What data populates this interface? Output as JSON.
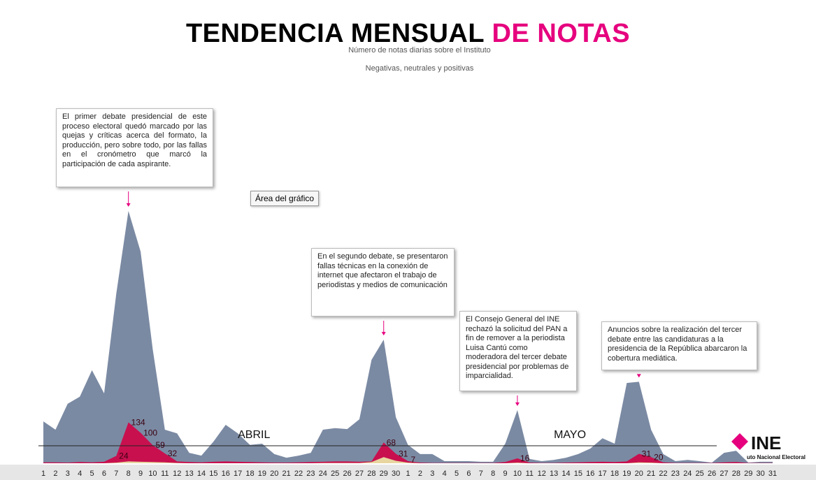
{
  "chart_data": {
    "type": "area",
    "title": "TENDENCIA MENSUAL",
    "title_highlight": "DE NOTAS",
    "subtitle": "Número de notas diarias sobre el Instituto",
    "subtitle2": "Negativas, neutrales y positivas",
    "categories": [
      "1",
      "2",
      "3",
      "4",
      "5",
      "6",
      "7",
      "8",
      "9",
      "10",
      "11",
      "12",
      "13",
      "14",
      "15",
      "16",
      "17",
      "18",
      "19",
      "20",
      "21",
      "22",
      "23",
      "24",
      "25",
      "26",
      "27",
      "28",
      "29",
      "30",
      "1",
      "2",
      "3",
      "4",
      "5",
      "6",
      "7",
      "8",
      "9",
      "10",
      "11",
      "12",
      "13",
      "14",
      "15",
      "16",
      "17",
      "18",
      "19",
      "20",
      "21",
      "22",
      "23",
      "24",
      "25",
      "26",
      "27",
      "28",
      "29",
      "30",
      "31"
    ],
    "months": [
      {
        "label": "ABRIL",
        "index": 16
      },
      {
        "label": "MAYO",
        "index": 42
      }
    ],
    "ylim": [
      0,
      900
    ],
    "series": [
      {
        "color": "#7b8aa3",
        "values": [
          137,
          110,
          195,
          218,
          305,
          229,
          556,
          827,
          694,
          373,
          110,
          98,
          34,
          25,
          71,
          126,
          98,
          60,
          64,
          30,
          18,
          25,
          34,
          110,
          115,
          112,
          144,
          339,
          405,
          151,
          60,
          30,
          30,
          7,
          7,
          7,
          5,
          5,
          64,
          174,
          14,
          7,
          11,
          18,
          30,
          48,
          82,
          64,
          263,
          267,
          110,
          30,
          7,
          11,
          7,
          2,
          34,
          41,
          2,
          5,
          5
        ]
      },
      {
        "color": "#c8104f",
        "values": [
          3,
          3,
          2,
          4,
          3,
          5,
          24,
          134,
          100,
          59,
          32,
          6,
          4,
          3,
          5,
          6,
          5,
          4,
          3,
          2,
          2,
          3,
          4,
          5,
          6,
          6,
          5,
          6,
          68,
          31,
          7,
          2,
          1,
          1,
          1,
          1,
          1,
          1,
          4,
          16,
          2,
          1,
          1,
          2,
          3,
          4,
          5,
          4,
          6,
          31,
          20,
          3,
          1,
          1,
          1,
          1,
          3,
          4,
          1,
          1,
          1
        ]
      },
      {
        "color": "#e8d6a0",
        "values": [
          0,
          0,
          0,
          0,
          0,
          0,
          2,
          6,
          5,
          4,
          3,
          1,
          0,
          0,
          0,
          0,
          0,
          0,
          0,
          0,
          0,
          0,
          0,
          1,
          1,
          1,
          1,
          4,
          20,
          8,
          2,
          0,
          0,
          0,
          0,
          0,
          0,
          0,
          0,
          2,
          0,
          0,
          0,
          0,
          0,
          0,
          0,
          0,
          0,
          3,
          2,
          0,
          0,
          0,
          0,
          0,
          0,
          0,
          0,
          0,
          0
        ]
      }
    ],
    "annotations": [
      {
        "index": 7,
        "text": "El primer debate presidencial de este proceso electoral quedó marcado por las quejas y críticas acerca del formato, la producción, pero sobre todo, por las fallas en el cronómetro que marcó la participación de cada aspirante."
      },
      {
        "index": 28,
        "text": "En el segundo debate, se presentaron fallas técnicas en la conexión de internet que afectaron el trabajo de periodistas y medios de comunicación"
      },
      {
        "index": 39,
        "text": "El Consejo General del INE rechazó la solicitud del PAN a fin de remover a la periodista Luisa Cantú como moderadora del tercer debate presidencial por problemas de imparcialidad."
      },
      {
        "index": 49,
        "text": "Anuncios sobre la realización del tercer debate entre las candidaturas a la presidencia de la República abarcaron la cobertura mediática."
      }
    ],
    "tooltip": "Área del gráfico",
    "logo": "INE",
    "logo_sub": "uto Nacional Electoral"
  }
}
